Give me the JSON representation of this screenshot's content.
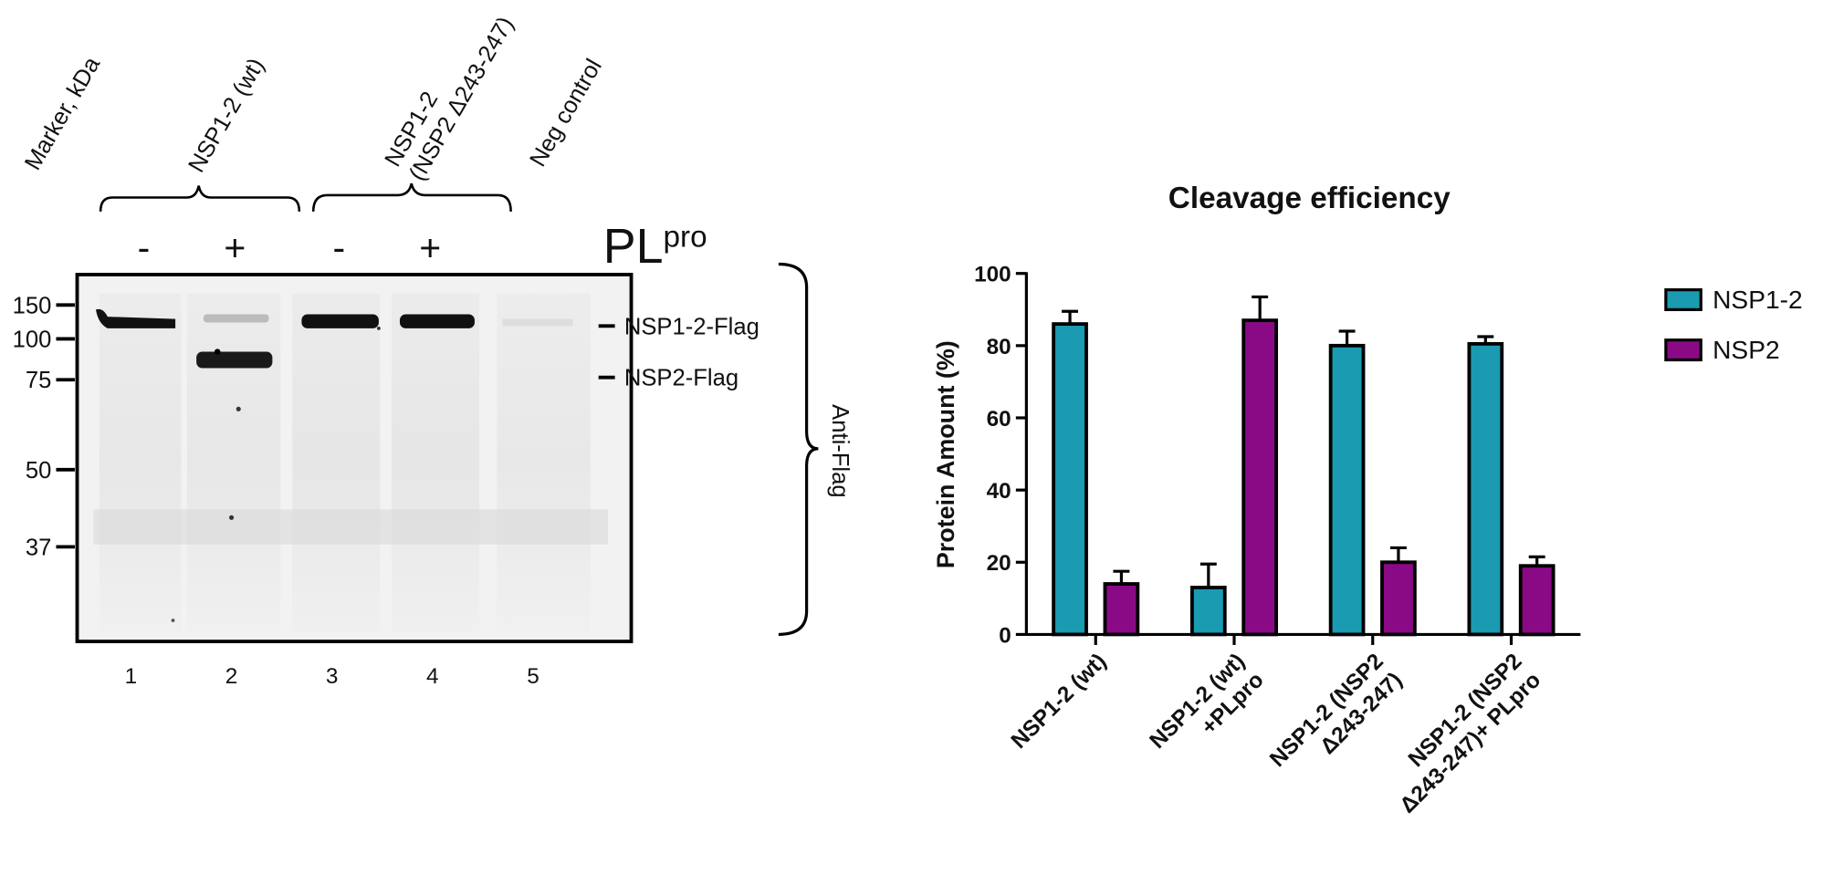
{
  "blot": {
    "lane_headers": [
      "Marker, kDa",
      "NSP1-2 (wt)",
      "NSP1-2\n(NSP2 Δ243-247)",
      "Neg control"
    ],
    "treatment": {
      "base": "PL",
      "sup": "pro"
    },
    "signs": [
      "-",
      "+",
      "-",
      "+"
    ],
    "marker_labels": [
      "150",
      "100",
      "75",
      "50",
      "37"
    ],
    "band_labels": [
      "NSP1-2-Flag",
      "NSP2-Flag"
    ],
    "antibody": "Anti-Flag",
    "lane_numbers": [
      "1",
      "2",
      "3",
      "4",
      "5"
    ]
  },
  "chart_data": {
    "type": "bar",
    "title": "Cleavage efficiency",
    "y_label": "Protein Amount (%)",
    "categories": [
      "NSP1-2 (wt)",
      "NSP1-2 (wt)\n+PLpro",
      "NSP1-2 (NSP2\nΔ243-247)",
      "NSP1-2 (NSP2\nΔ243-247)+ PLpro"
    ],
    "series": [
      {
        "name": "NSP1-2",
        "color": "#1a9bb2",
        "values": [
          86,
          13,
          80,
          80.5
        ],
        "errors": [
          3.5,
          6.5,
          4,
          2
        ]
      },
      {
        "name": "NSP2",
        "color": "#8a0a86",
        "values": [
          14,
          87,
          20,
          19
        ],
        "errors": [
          3.5,
          6.5,
          4,
          2.5
        ]
      }
    ],
    "ylim": [
      0,
      100
    ],
    "yticks": [
      0,
      20,
      40,
      60,
      80,
      100
    ],
    "legend": "right"
  }
}
